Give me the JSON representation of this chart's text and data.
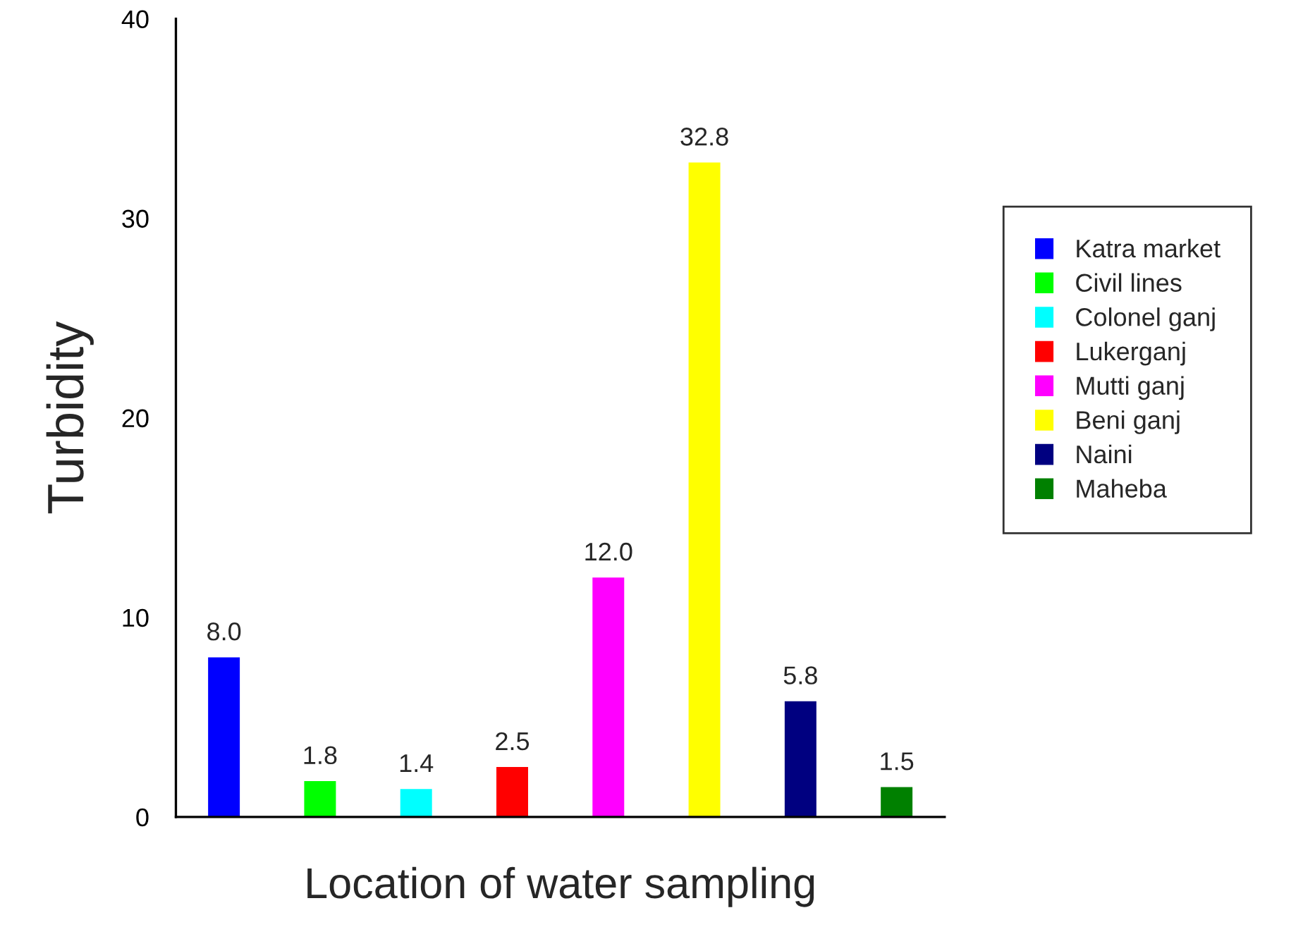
{
  "chart_data": {
    "type": "bar",
    "xlabel": "Location of water sampling",
    "ylabel": "Turbidity",
    "categories": [
      null,
      null,
      null,
      null,
      null,
      null,
      null,
      null
    ],
    "series": [
      {
        "name": "Katra market",
        "color": "#0000ff",
        "values": [
          8.0,
          null,
          null,
          null,
          null,
          null,
          null,
          null
        ],
        "value_labels": [
          "8.0",
          null,
          null,
          null,
          null,
          null,
          null,
          null
        ]
      },
      {
        "name": "Civil lines",
        "color": "#00ff00",
        "values": [
          null,
          1.8,
          null,
          null,
          null,
          null,
          null,
          null
        ],
        "value_labels": [
          null,
          "1.8",
          null,
          null,
          null,
          null,
          null,
          null
        ]
      },
      {
        "name": "Colonel ganj",
        "color": "#00ffff",
        "values": [
          null,
          null,
          1.4,
          null,
          null,
          null,
          null,
          null
        ],
        "value_labels": [
          null,
          null,
          "1.4",
          null,
          null,
          null,
          null,
          null
        ]
      },
      {
        "name": "Lukerganj",
        "color": "#ff0000",
        "values": [
          null,
          null,
          null,
          2.5,
          null,
          null,
          null,
          null
        ],
        "value_labels": [
          null,
          null,
          null,
          "2.5",
          null,
          null,
          null,
          null
        ]
      },
      {
        "name": "Mutti ganj",
        "color": "#ff00ff",
        "values": [
          null,
          null,
          null,
          null,
          12.0,
          null,
          null,
          null
        ],
        "value_labels": [
          null,
          null,
          null,
          null,
          "12.0",
          null,
          null,
          null
        ]
      },
      {
        "name": "Beni ganj",
        "color": "#ffff00",
        "values": [
          null,
          null,
          null,
          null,
          null,
          32.8,
          null,
          null
        ],
        "value_labels": [
          null,
          null,
          null,
          null,
          null,
          "32.8",
          null,
          null
        ]
      },
      {
        "name": "Naini",
        "color": "#000080",
        "values": [
          null,
          null,
          null,
          null,
          null,
          null,
          5.8,
          null
        ],
        "value_labels": [
          null,
          null,
          null,
          null,
          null,
          null,
          "5.8",
          null
        ]
      },
      {
        "name": "Maheba",
        "color": "#008000",
        "values": [
          null,
          null,
          null,
          null,
          null,
          null,
          null,
          1.5
        ],
        "value_labels": [
          null,
          null,
          null,
          null,
          null,
          null,
          null,
          "1.5"
        ]
      }
    ],
    "ylim": [
      0,
      40
    ],
    "yticks": [
      0,
      10,
      20,
      30,
      40
    ],
    "grid": false,
    "legend": "right"
  }
}
